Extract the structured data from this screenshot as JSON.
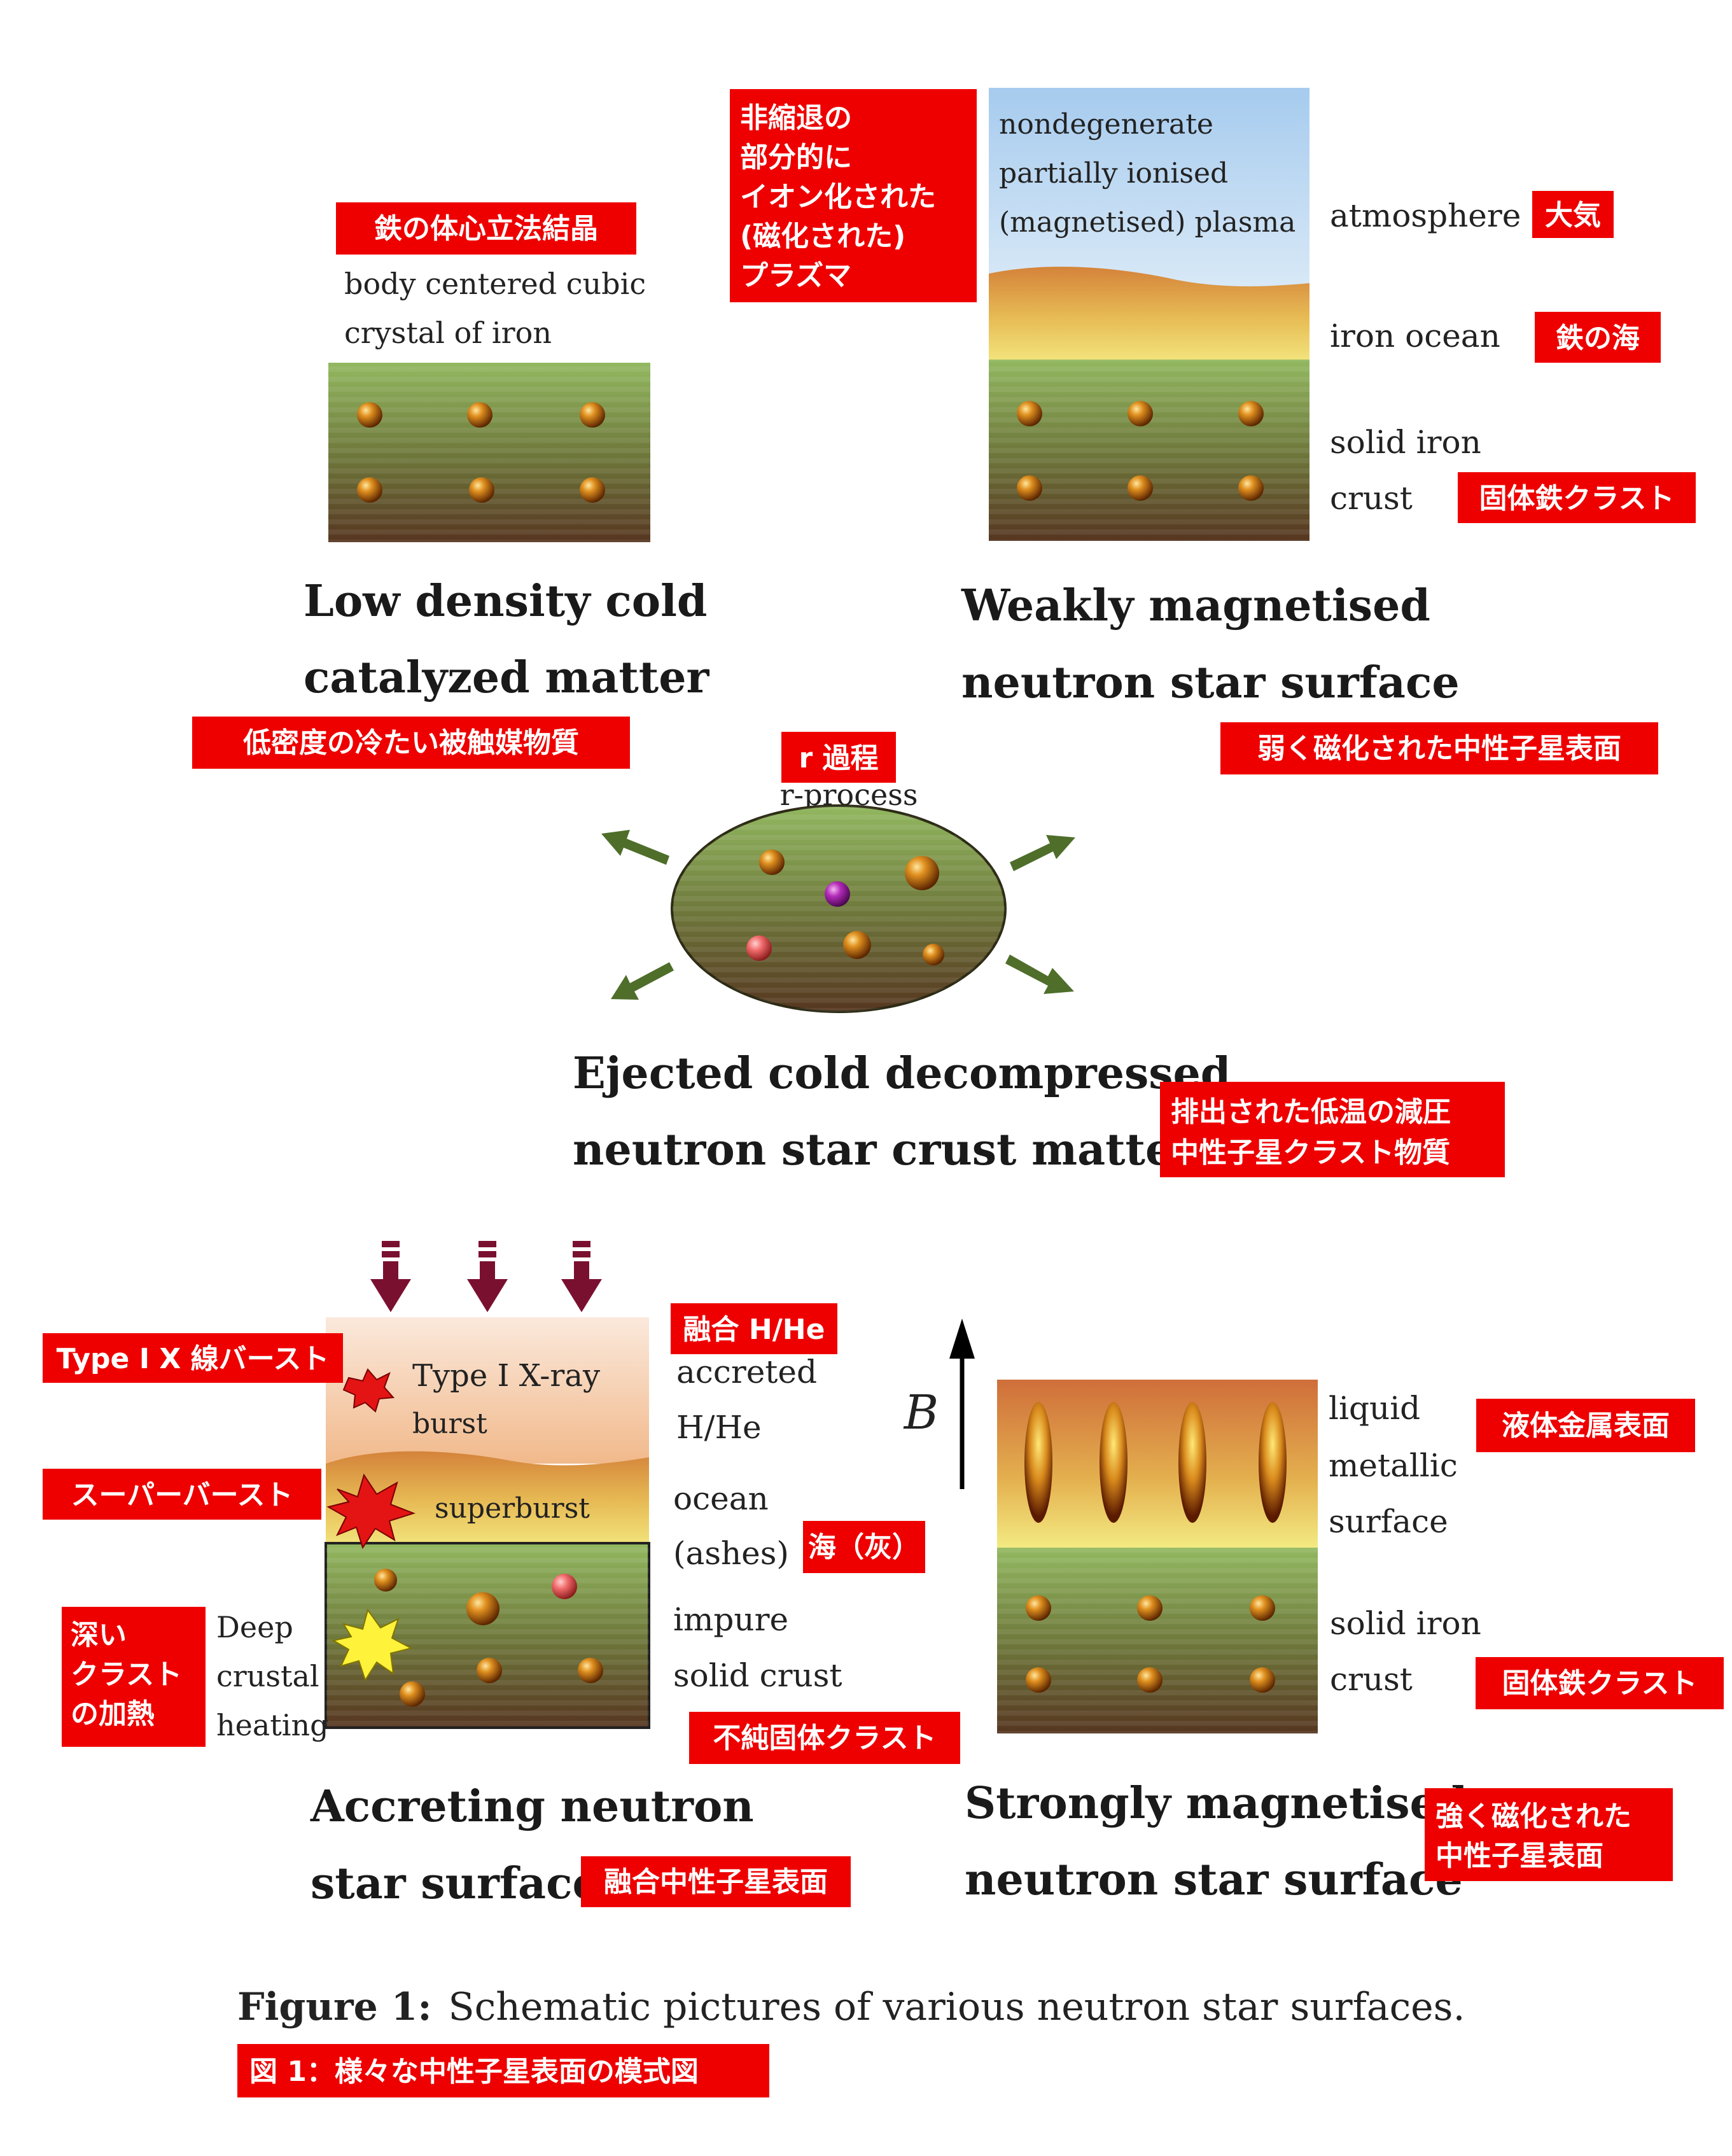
{
  "panels": {
    "low_density": {
      "label_en": [
        "body centered cubic",
        "crystal of iron"
      ],
      "label_jp": "鉄の体心立法結晶",
      "title_en": [
        "Low density cold",
        "catalyzed matter"
      ],
      "title_jp": "低密度の冷たい被触媒物質"
    },
    "weak_mag": {
      "plasma_en": [
        "nondegenerate",
        "partially ionised",
        "(magnetised) plasma"
      ],
      "plasma_jp": [
        "非縮退の",
        "部分的に",
        "イオン化された",
        "(磁化された)",
        "プラズマ"
      ],
      "atmosphere_en": "atmosphere",
      "atmosphere_jp": "大気",
      "ocean_en": "iron ocean",
      "ocean_jp": "鉄の海",
      "solid_en": [
        "solid iron",
        "crust"
      ],
      "solid_jp": "固体鉄クラスト",
      "title_en": [
        "Weakly magnetised",
        "neutron star surface"
      ],
      "title_jp": "弱く磁化された中性子星表面"
    },
    "ejected": {
      "rprocess_en": "r-process",
      "rprocess_jp": "r 過程",
      "title_en": [
        "Ejected cold decompressed",
        "neutron star crust matter"
      ],
      "title_jp": [
        "排出された低温の減圧",
        "中性子星クラスト物質"
      ]
    },
    "accreting": {
      "burst_en": [
        "Type I X-ray",
        "burst"
      ],
      "burst_jp": "Type I X 線バースト",
      "superburst_en": "superburst",
      "superburst_jp": "スーパーバースト",
      "heating_en": [
        "Deep",
        "crustal",
        "heating"
      ],
      "heating_jp": [
        "深い",
        "クラスト",
        "の加熱"
      ],
      "accreted_en": [
        "accreted",
        "H/He"
      ],
      "accreted_jp": "融合 H/He",
      "ocean_en": [
        "ocean",
        "(ashes)"
      ],
      "ocean_jp": "海（灰）",
      "crust_en": [
        "impure",
        "solid crust"
      ],
      "crust_jp": "不純固体クラスト",
      "title_en": [
        "Accreting neutron",
        "star surface"
      ],
      "title_jp": "融合中性子星表面"
    },
    "strong_mag": {
      "b_label": "B",
      "liquid_en": [
        "liquid",
        "metallic",
        "surface"
      ],
      "liquid_jp": "液体金属表面",
      "solid_en": [
        "solid iron",
        "crust"
      ],
      "solid_jp": "固体鉄クラスト",
      "title_en": [
        "Strongly magnetised",
        "neutron star surface"
      ],
      "title_jp": [
        "強く磁化された",
        "中性子星表面"
      ]
    }
  },
  "caption": {
    "prefix": "Figure 1:",
    "text": "Schematic pictures of various neutron star surfaces.",
    "jp": "図 1：様々な中性子星表面の模式図"
  },
  "colors": {
    "annotation_red": "#ee0000",
    "crust_top": "#8fb35c",
    "crust_bottom": "#5a3a22",
    "ocean_top": "#d98f3a",
    "ocean_bottom": "#f1e07a",
    "sky": "#a9cdef",
    "arrow_green": "#4e6e2a",
    "arrow_maroon": "#7a1030"
  }
}
